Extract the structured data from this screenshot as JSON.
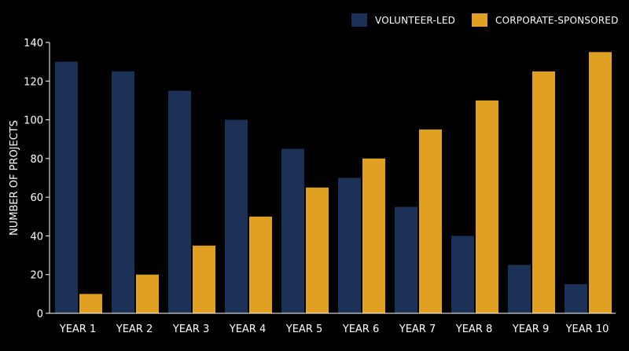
{
  "colors": {
    "background": "#000000",
    "volunteer": "#1b3158",
    "corporate": "#e0a021",
    "axis": "#ffffff",
    "text": "#ffffff"
  },
  "chart_data": {
    "type": "bar",
    "title": "",
    "xlabel": "",
    "ylabel": "NUMBER OF PROJECTS",
    "ylim": [
      0,
      140
    ],
    "yticks": [
      0,
      20,
      40,
      60,
      80,
      100,
      120,
      140
    ],
    "grid": false,
    "legend_position": "top-right",
    "categories": [
      "YEAR 1",
      "YEAR 2",
      "YEAR 3",
      "YEAR 4",
      "YEAR 5",
      "YEAR 6",
      "YEAR 7",
      "YEAR 8",
      "YEAR 9",
      "YEAR 10"
    ],
    "series": [
      {
        "name": "VOLUNTEER-LED",
        "color": "#1b3158",
        "values": [
          130,
          125,
          115,
          100,
          85,
          70,
          55,
          40,
          25,
          15
        ]
      },
      {
        "name": "CORPORATE-SPONSORED",
        "color": "#e0a021",
        "values": [
          10,
          20,
          35,
          50,
          65,
          80,
          95,
          110,
          125,
          135
        ]
      }
    ]
  }
}
